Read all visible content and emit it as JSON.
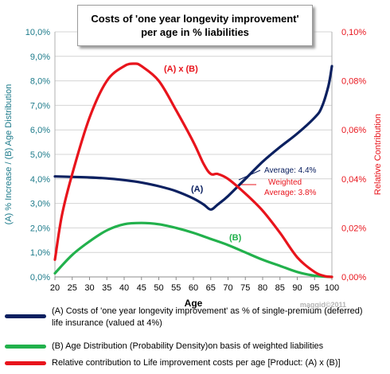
{
  "title_line1": "Costs of 'one year longevity improvement'",
  "title_line2": "per age in % liabilities",
  "watermark": "maggid©2011",
  "colors": {
    "costs": "#0b2060",
    "distribution": "#22b14c",
    "contribution": "#e8141c",
    "left_axis": "#1c7a8a",
    "right_axis": "#e8141c"
  },
  "legend": [
    {
      "label": "(A) Costs of 'one year longevity improvement' as % of single-premium (deferred) life insurance (valued at 4%)",
      "color": "#0b2060"
    },
    {
      "label": "(B) Age Distribution (Probability Density)on basis of weighted liabilities",
      "color": "#22b14c"
    },
    {
      "label": "Relative contribution to Life improvement costs per age [Product: (A) x (B)]",
      "color": "#e8141c"
    }
  ],
  "chart_data": {
    "type": "line",
    "xlabel": "Age",
    "ylabel_left": "(A)  % Increase  /  (B)  Age Distribution",
    "ylabel_right": "Relative Contribution",
    "x_ticks": [
      20,
      25,
      30,
      35,
      40,
      45,
      50,
      55,
      60,
      65,
      70,
      75,
      80,
      85,
      90,
      95,
      100
    ],
    "xlim": [
      20,
      100
    ],
    "ylim_left": [
      0,
      10
    ],
    "ylim_right": [
      0,
      0.1
    ],
    "y_ticks_left": [
      "0,0%",
      "1,0%",
      "2,0%",
      "3,0%",
      "4,0%",
      "5,0%",
      "6,0%",
      "7,0%",
      "8,0%",
      "9,0%",
      "10,0%"
    ],
    "y_ticks_right": [
      "0,00%",
      "0,02%",
      "0,04%",
      "0,06%",
      "0,08%",
      "0,10%"
    ],
    "series": [
      {
        "name": "(A) Costs of 'one year longevity improvement' as % of single-premium (deferred) life insurance (valued at 4%)",
        "axis": "left",
        "x": [
          20,
          25,
          30,
          35,
          40,
          45,
          50,
          55,
          60,
          63,
          65,
          67,
          70,
          75,
          80,
          85,
          90,
          95,
          97,
          99,
          100
        ],
        "y": [
          4.1,
          4.08,
          4.06,
          4.02,
          3.95,
          3.85,
          3.7,
          3.5,
          3.2,
          2.95,
          2.75,
          2.95,
          3.3,
          4.0,
          4.7,
          5.3,
          5.85,
          6.5,
          6.9,
          7.8,
          8.6
        ]
      },
      {
        "name": "(B) Age Distribution (Probability Density)on basis of weighted liabilities",
        "axis": "left",
        "x": [
          20,
          25,
          30,
          35,
          40,
          45,
          50,
          55,
          60,
          65,
          70,
          75,
          80,
          85,
          90,
          95,
          100
        ],
        "y": [
          0.15,
          0.9,
          1.45,
          1.9,
          2.15,
          2.2,
          2.15,
          2.0,
          1.8,
          1.55,
          1.3,
          1.0,
          0.7,
          0.45,
          0.2,
          0.05,
          0.0
        ]
      },
      {
        "name": "Relative contribution to Life improvement costs per age [Product: (A) x (B)]",
        "axis": "right",
        "x": [
          20,
          22,
          25,
          30,
          35,
          40,
          43,
          45,
          50,
          55,
          60,
          63,
          65,
          67,
          70,
          75,
          80,
          85,
          90,
          95,
          98,
          100
        ],
        "y": [
          0.007,
          0.025,
          0.042,
          0.065,
          0.08,
          0.086,
          0.087,
          0.086,
          0.08,
          0.068,
          0.055,
          0.046,
          0.042,
          0.042,
          0.04,
          0.034,
          0.027,
          0.018,
          0.008,
          0.002,
          0.0003,
          0.0
        ]
      }
    ],
    "annotations": [
      {
        "text": "(A) x (B)",
        "color": "#e8141c"
      },
      {
        "text": "(A)",
        "color": "#0b2060"
      },
      {
        "text": "(B)",
        "color": "#22b14c"
      },
      {
        "text": "Average: 4.4%",
        "color": "#0b2060"
      },
      {
        "text": "Weighted",
        "color": "#e8141c"
      },
      {
        "text": "Average: 3.8%",
        "color": "#e8141c"
      }
    ]
  }
}
